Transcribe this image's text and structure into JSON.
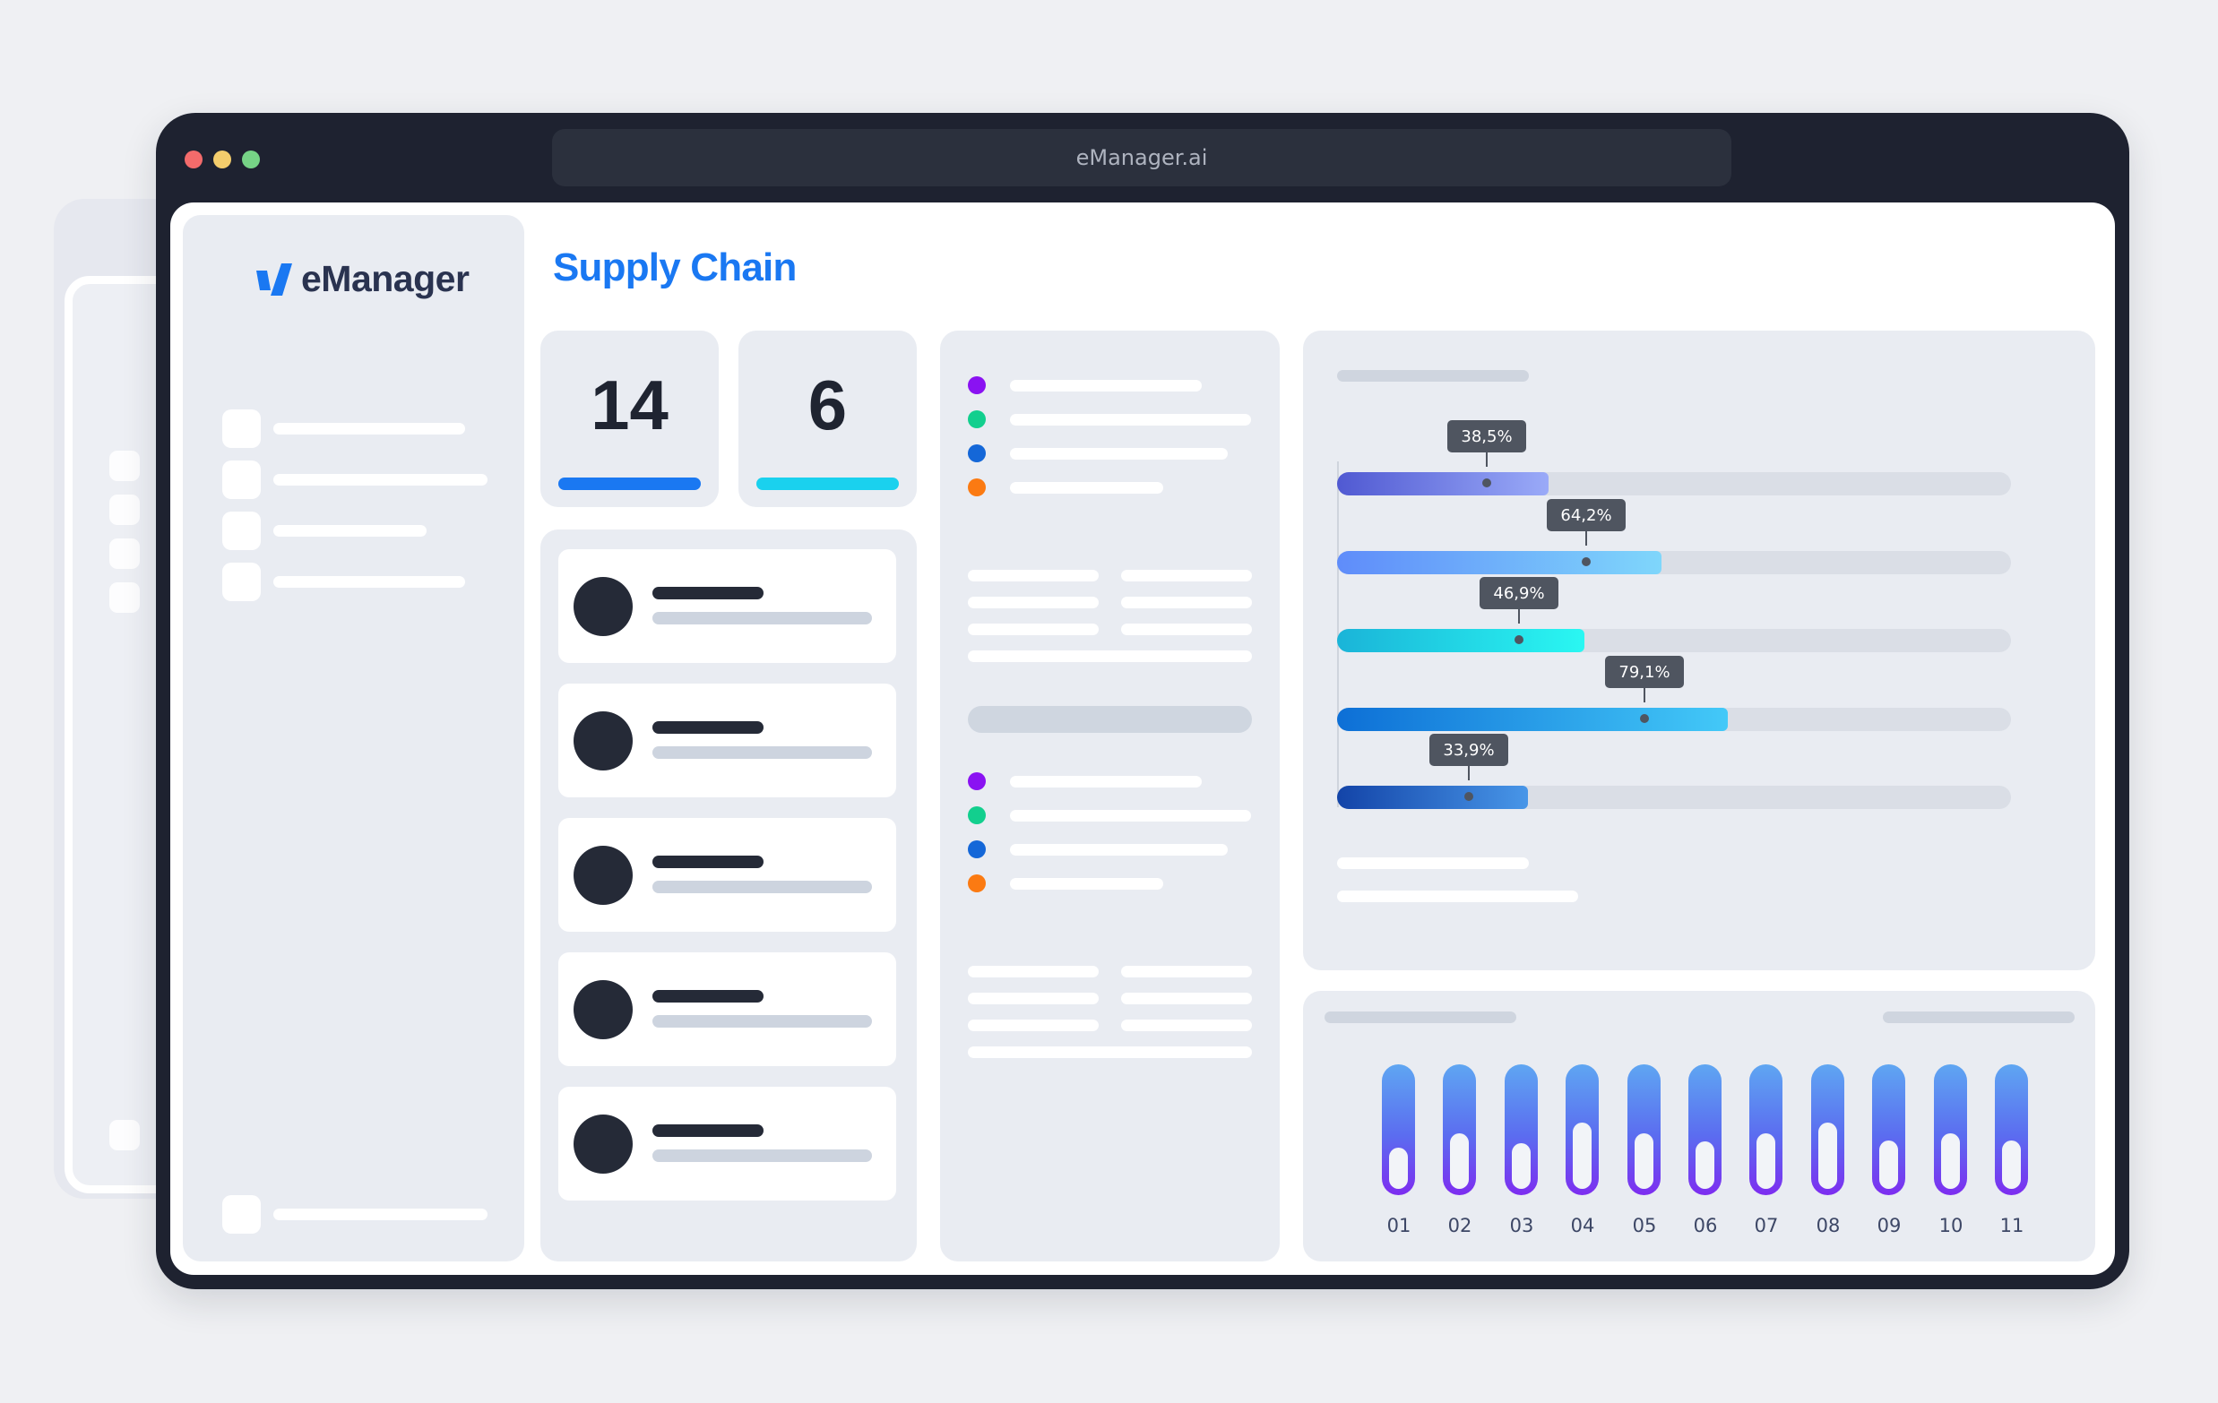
{
  "browser": {
    "url": "eManager.ai",
    "controls": {
      "close_color": "#f36b6b",
      "minimize_color": "#f4cd6c",
      "maximize_color": "#76d386"
    }
  },
  "app": {
    "logo_text": "eManager",
    "logo_icon": "emanager-check-logo",
    "brand_color": "#1a78f2"
  },
  "page": {
    "title": "Supply Chain"
  },
  "stats": [
    {
      "value": "14",
      "bar_color": "#1a78f2"
    },
    {
      "value": "6",
      "bar_color": "#1ad1ee"
    }
  ],
  "legend_colors": [
    "#8a12f2",
    "#12cf8e",
    "#1467d8",
    "#fb7a12"
  ],
  "progress": {
    "bars": [
      {
        "label": "38,5%",
        "value": 38.5,
        "fill_fraction": 0.314,
        "gradient": [
          "#5059d2",
          "#9aaaf8"
        ]
      },
      {
        "label": "64,2%",
        "value": 64.2,
        "fill_fraction": 0.482,
        "gradient": [
          "#5f8cfa",
          "#7fd6fb"
        ]
      },
      {
        "label": "46,9%",
        "value": 46.9,
        "fill_fraction": 0.367,
        "gradient": [
          "#1ab4d8",
          "#2af7f2"
        ]
      },
      {
        "label": "79,1%",
        "value": 79.1,
        "fill_fraction": 0.58,
        "gradient": [
          "#0d6fd6",
          "#43c9f8"
        ]
      },
      {
        "label": "33,9%",
        "value": 33.9,
        "fill_fraction": 0.283,
        "gradient": [
          "#1344a8",
          "#4896e8"
        ]
      }
    ]
  },
  "columns": {
    "labels": [
      "01",
      "02",
      "03",
      "04",
      "05",
      "06",
      "07",
      "08",
      "09",
      "10",
      "11"
    ],
    "fill_fractions": [
      0.35,
      0.47,
      0.39,
      0.56,
      0.47,
      0.4,
      0.47,
      0.56,
      0.41,
      0.47,
      0.41
    ]
  }
}
